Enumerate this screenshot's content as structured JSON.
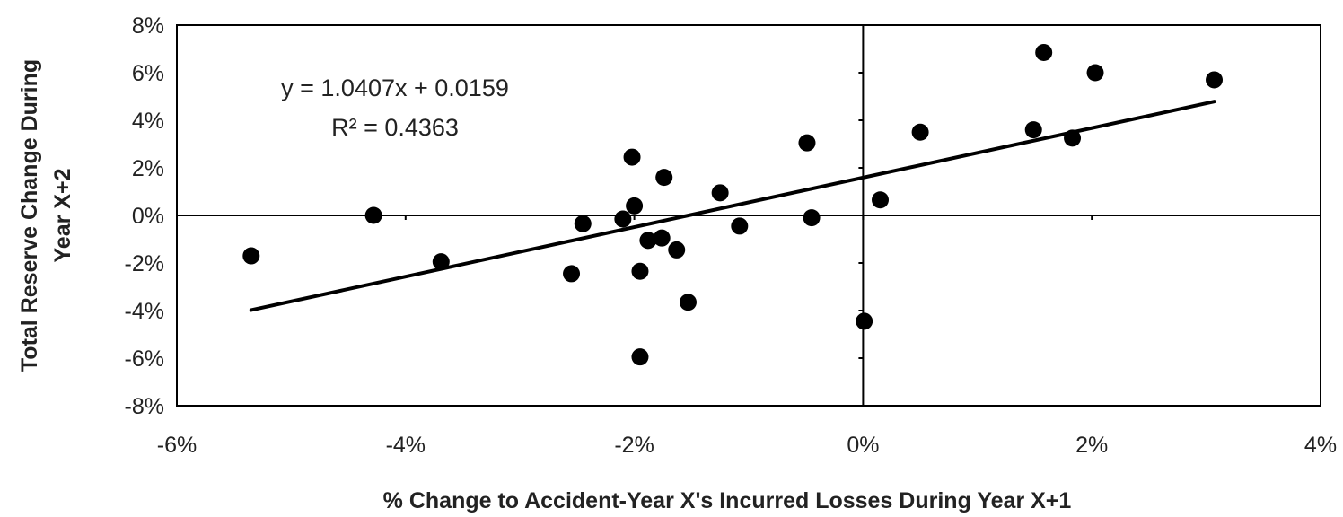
{
  "chart_data": {
    "type": "scatter",
    "title": "",
    "xlabel": "% Change to Accident-Year X's Incurred Losses During Year X+1",
    "ylabel": "Total Reserve Change During Year X+2",
    "xlim": [
      -0.06,
      0.04
    ],
    "ylim": [
      -0.08,
      0.08
    ],
    "x_ticks": [
      -0.06,
      -0.04,
      -0.02,
      0.0,
      0.02,
      0.04
    ],
    "x_tick_labels": [
      "-6%",
      "-4%",
      "-2%",
      "0%",
      "2%",
      "4%"
    ],
    "y_ticks": [
      0.08,
      0.06,
      0.04,
      0.02,
      0.0,
      -0.02,
      -0.04,
      -0.06,
      -0.08
    ],
    "y_tick_labels": [
      "8%",
      "6%",
      "4%",
      "2%",
      "0%",
      "-2%",
      "-4%",
      "-6%",
      "-8%"
    ],
    "grid": false,
    "legend": "none",
    "colors": {
      "points": "#000000",
      "trendline": "#000000",
      "axes": "#000000",
      "frame": "#000000"
    },
    "series": [
      {
        "points": [
          [
            -0.0535,
            -0.017
          ],
          [
            -0.0428,
            0.0
          ],
          [
            -0.0369,
            -0.0195
          ],
          [
            -0.0255,
            -0.0245
          ],
          [
            -0.0245,
            -0.0035
          ],
          [
            -0.021,
            -0.0015
          ],
          [
            -0.0202,
            0.0245
          ],
          [
            -0.02,
            0.004
          ],
          [
            -0.0195,
            -0.0235
          ],
          [
            -0.0195,
            -0.0595
          ],
          [
            -0.0188,
            -0.0105
          ],
          [
            -0.0176,
            -0.0095
          ],
          [
            -0.0174,
            0.016
          ],
          [
            -0.0163,
            -0.0145
          ],
          [
            -0.0153,
            -0.0365
          ],
          [
            -0.0125,
            0.0095
          ],
          [
            -0.0108,
            -0.0045
          ],
          [
            -0.0049,
            0.0305
          ],
          [
            -0.0045,
            -0.001
          ],
          [
            0.0001,
            -0.0445
          ],
          [
            0.0015,
            0.0065
          ],
          [
            0.005,
            0.035
          ],
          [
            0.0149,
            0.036
          ],
          [
            0.0158,
            0.0685
          ],
          [
            0.0183,
            0.0325
          ],
          [
            0.0203,
            0.06
          ],
          [
            0.0307,
            0.057
          ]
        ]
      }
    ],
    "trendline": {
      "slope": 1.0407,
      "intercept": 0.0159,
      "x_range": [
        -0.0535,
        0.0307
      ]
    },
    "annotations": {
      "equation": "y = 1.0407x + 0.0159",
      "r_squared": "R² = 0.4363"
    }
  }
}
